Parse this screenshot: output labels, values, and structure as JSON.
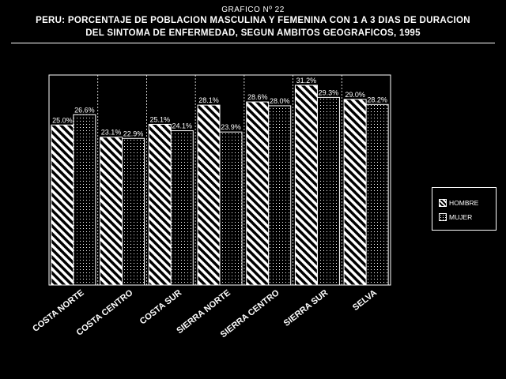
{
  "header": {
    "figure_label": "GRAFICO Nº 22",
    "title_line1": "PERU: PORCENTAJE DE POBLACION MASCULINA Y FEMENINA CON 1 A 3 DIAS DE DURACION",
    "title_line2": "DEL SINTOMA DE ENFERMEDAD, SEGUN AMBITOS GEOGRAFICOS, 1995"
  },
  "chart_data": {
    "type": "bar",
    "categories": [
      "COSTA NORTE",
      "COSTA CENTRO",
      "COSTA SUR",
      "SIERRA NORTE",
      "SIERRA CENTRO",
      "SIERRA SUR",
      "SELVA"
    ],
    "series": [
      {
        "name": "HOMBRE",
        "values": [
          25.0,
          23.1,
          25.1,
          28.1,
          28.6,
          31.2,
          29.0
        ],
        "labels": [
          "25.0%",
          "23.1%",
          "25.1%",
          "28.1%",
          "28.6%",
          "31.2%",
          "29.0%"
        ]
      },
      {
        "name": "MUJER",
        "values": [
          26.6,
          22.9,
          24.1,
          23.9,
          28.0,
          29.3,
          28.2
        ],
        "labels": [
          "26.6%",
          "22.9%",
          "24.1%",
          "23.9%",
          "28.0%",
          "29.3%",
          "28.2%"
        ]
      }
    ],
    "ylim": [
      0,
      32.8
    ],
    "grid": "vertical dotted separators between categories",
    "legend_position": "right",
    "colors": {
      "background": "#000000",
      "foreground": "#ffffff"
    }
  }
}
